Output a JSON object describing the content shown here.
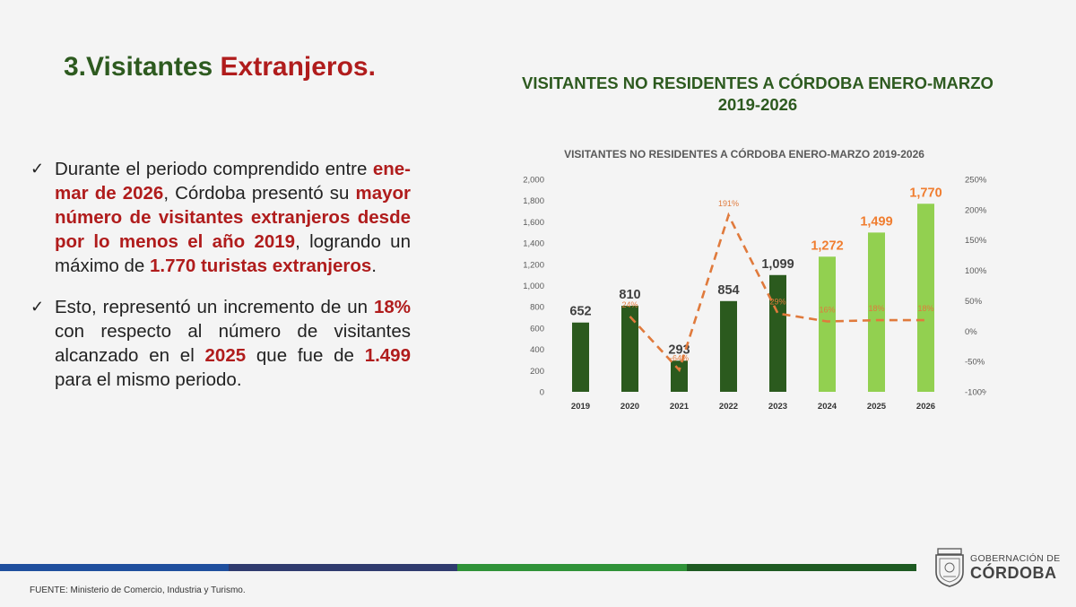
{
  "slide": {
    "title_part1": "3.Visitantes ",
    "title_part2": "Extranjeros."
  },
  "bullets": [
    {
      "check": "✓",
      "segments": [
        {
          "text": "Durante el periodo comprendido entre ",
          "hl": false
        },
        {
          "text": "ene-mar de 2026",
          "hl": true
        },
        {
          "text": ", Córdoba presentó su ",
          "hl": false
        },
        {
          "text": "mayor número de visitantes extranjeros desde por lo menos el año 2019",
          "hl": true
        },
        {
          "text": ", logrando un máximo de ",
          "hl": false
        },
        {
          "text": "1.770 turistas extranjeros",
          "hl": true
        },
        {
          "text": ".",
          "hl": false
        }
      ]
    },
    {
      "check": "✓",
      "segments": [
        {
          "text": "Esto, representó un incremento de un ",
          "hl": false
        },
        {
          "text": "18%",
          "hl": true
        },
        {
          "text": " con respecto al número de visitantes alcanzado en el ",
          "hl": false
        },
        {
          "text": "2025",
          "hl": true
        },
        {
          "text": " que fue de ",
          "hl": false
        },
        {
          "text": "1.499",
          "hl": true
        },
        {
          "text": " para el mismo periodo.",
          "hl": false
        }
      ]
    }
  ],
  "chart_heading": "VISITANTES NO RESIDENTES A CÓRDOBA ENERO-MARZO 2019-2026",
  "chart_data": {
    "type": "bar",
    "title": "VISITANTES NO RESIDENTES A CÓRDOBA ENERO-MARZO 2019-2026",
    "categories": [
      "2019",
      "2020",
      "2021",
      "2022",
      "2023",
      "2024",
      "2025",
      "2026"
    ],
    "series": [
      {
        "type": "bar",
        "values": [
          652,
          810,
          293,
          854,
          1099,
          1272,
          1499,
          1770
        ],
        "value_labels": [
          "652",
          "810",
          "293",
          "854",
          "1,099",
          "1,272",
          "1,499",
          "1,770"
        ],
        "colors": [
          "#2b5a1e",
          "#2b5a1e",
          "#2b5a1e",
          "#2b5a1e",
          "#2b5a1e",
          "#92d050",
          "#92d050",
          "#92d050"
        ],
        "label_colors": [
          "#404040",
          "#404040",
          "#404040",
          "#404040",
          "#404040",
          "#f07d2f",
          "#f07d2f",
          "#f07d2f"
        ]
      },
      {
        "type": "line",
        "axis": "secondary",
        "values": [
          null,
          24,
          -64,
          191,
          29,
          16,
          18,
          18
        ],
        "value_labels": [
          "",
          "24%",
          "-64%",
          "191%",
          "29%",
          "16%",
          "18%",
          "18%"
        ],
        "color": "#e07a3c",
        "style": "dashed"
      }
    ],
    "ylim": [
      0,
      2000
    ],
    "yticks": [
      "0",
      "200",
      "400",
      "600",
      "800",
      "1,000",
      "1,200",
      "1,400",
      "1,600",
      "1,800",
      "2,000"
    ],
    "y2lim": [
      -100,
      250
    ],
    "y2ticks": [
      "-100%",
      "-50%",
      "0%",
      "50%",
      "100%",
      "150%",
      "200%",
      "250%"
    ],
    "grid": false,
    "legend": "none"
  },
  "footer": {
    "source": "FUENTE: Ministerio de Comercio, Industria y Turismo.",
    "logo_sub": "GOBERNACIÓN DE",
    "logo_main": "CÓRDOBA",
    "bar_colors": [
      "#1f4f9e",
      "#2f3b6e",
      "#2f9238",
      "#1e5a22"
    ]
  }
}
